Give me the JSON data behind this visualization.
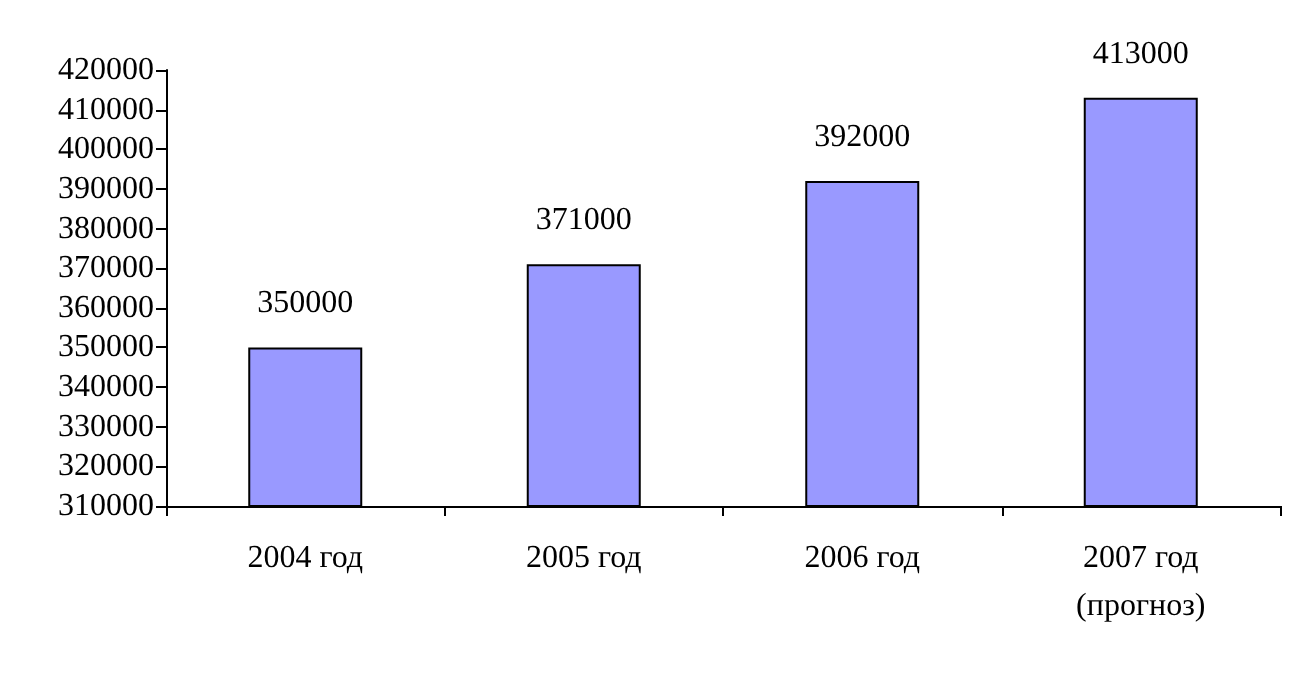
{
  "chart_data": {
    "type": "bar",
    "categories": [
      "2004 год",
      "2005 год",
      "2006 год",
      "2007 год\n(прогноз)"
    ],
    "values": [
      350000,
      371000,
      392000,
      413000
    ],
    "color": "#9999ff",
    "data_labels": true,
    "grid": false,
    "ylim": [
      310000,
      420000
    ],
    "yticks": [
      310000,
      320000,
      330000,
      340000,
      350000,
      360000,
      370000,
      380000,
      390000,
      400000,
      410000,
      420000
    ]
  }
}
